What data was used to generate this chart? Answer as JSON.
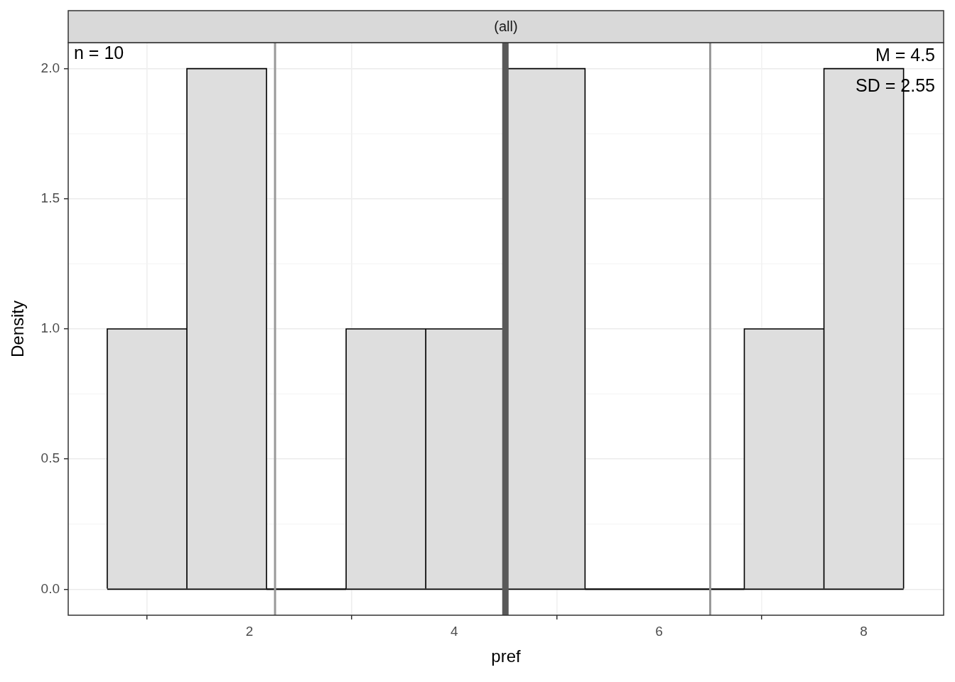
{
  "chart_data": {
    "type": "histogram",
    "title": "(all)",
    "xlabel": "pref",
    "ylabel": "Density",
    "bins": [
      0.611,
      1.389,
      2.167,
      2.944,
      3.722,
      4.5,
      5.278,
      6.056,
      6.833,
      7.611,
      8.389
    ],
    "values": [
      1,
      2,
      0,
      1,
      1,
      2,
      0,
      0,
      1,
      2
    ],
    "color": "#dedede",
    "xlim": [
      0.23,
      8.78
    ],
    "xticks": [
      2,
      4,
      6,
      8
    ],
    "ylim": [
      -0.1,
      2.1
    ],
    "yticks": [
      {
        "value": 0,
        "label": "0.0"
      },
      {
        "value": 0.5,
        "label": "0.5"
      },
      {
        "value": 1,
        "label": "1.0"
      },
      {
        "value": 1.5,
        "label": "1.5"
      },
      {
        "value": 2,
        "label": "2.0"
      }
    ],
    "grid": true,
    "ref_lines": [
      {
        "axis": "x",
        "value": 2.25,
        "color": "#999999"
      },
      {
        "axis": "x",
        "value": 4.5,
        "color": "#595959"
      },
      {
        "axis": "x",
        "value": 6.5,
        "color": "#999999"
      }
    ],
    "annotations": [
      "n = 10",
      "M = 4.5",
      "SD = 2.55"
    ]
  }
}
